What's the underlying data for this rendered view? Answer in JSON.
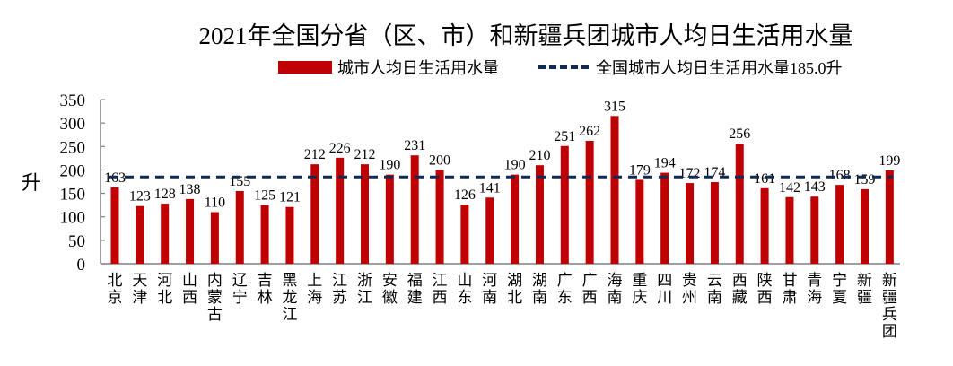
{
  "chart_data": {
    "type": "bar",
    "title": "2021年全国分省（区、市）和新疆兵团城市人均日生活用水量",
    "xlabel": "",
    "ylabel": "升",
    "ylim": [
      0,
      350
    ],
    "yticks": [
      0,
      50,
      100,
      150,
      200,
      250,
      300,
      350
    ],
    "grid": false,
    "legend_position": "top",
    "categories": [
      "北京",
      "天津",
      "河北",
      "山西",
      "内蒙古",
      "辽宁",
      "吉林",
      "黑龙江",
      "上海",
      "江苏",
      "浙江",
      "安徽",
      "福建",
      "江西",
      "山东",
      "河南",
      "湖北",
      "湖南",
      "广东",
      "广西",
      "海南",
      "重庆",
      "四川",
      "贵州",
      "云南",
      "西藏",
      "陕西",
      "甘肃",
      "青海",
      "宁夏",
      "新疆",
      "新疆兵团"
    ],
    "series": [
      {
        "name": "城市人均日生活用水量",
        "type": "bar",
        "color": "#c00000",
        "values": [
          163,
          123,
          128,
          138,
          110,
          155,
          125,
          121,
          212,
          226,
          212,
          190,
          231,
          200,
          126,
          141,
          190,
          210,
          251,
          262,
          315,
          179,
          194,
          172,
          174,
          256,
          161,
          142,
          143,
          168,
          159,
          199
        ],
        "labels": [
          "163",
          "123",
          "128",
          "138",
          "110",
          "155",
          "125",
          "121",
          "212",
          "226",
          "212",
          "190",
          "231",
          "200",
          "126",
          "141",
          "190",
          "210",
          "251",
          "262",
          "315",
          "179",
          "194",
          "172",
          "174",
          "256",
          "161",
          "142",
          "143",
          "168",
          "159",
          "199"
        ]
      },
      {
        "name": "全国城市人均日生活用水量185.0升",
        "type": "reference_line",
        "style": "dashed",
        "color": "#0e2a5a",
        "value": 185.0
      }
    ]
  },
  "legend": {
    "bar_label": "城市人均日生活用水量",
    "line_label": "全国城市人均日生活用水量185.0升"
  },
  "axis": {
    "y_unit": "升"
  }
}
